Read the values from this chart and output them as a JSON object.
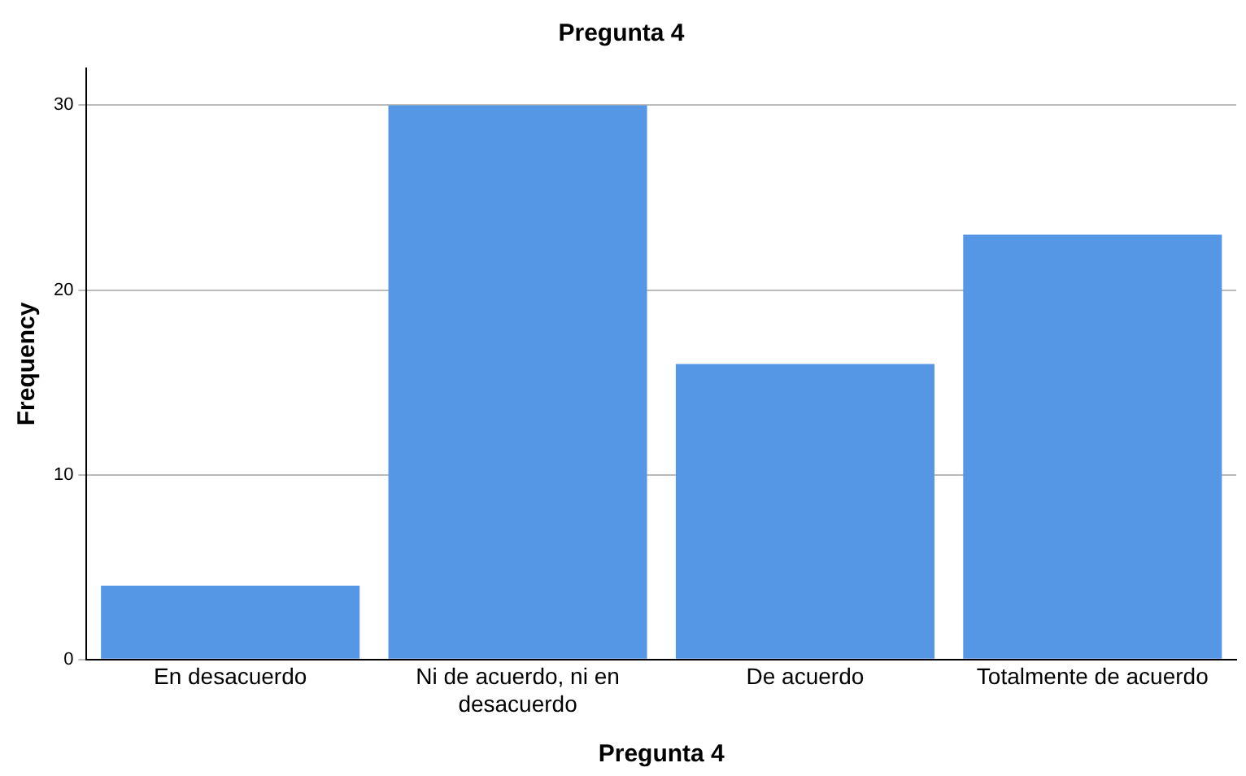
{
  "chart_data": {
    "type": "bar",
    "title": "Pregunta 4",
    "xlabel": "Pregunta 4",
    "ylabel": "Frequency",
    "categories": [
      "En desacuerdo",
      "Ni de acuerdo, ni en desacuerdo",
      "De acuerdo",
      "Totalmente de acuerdo"
    ],
    "values": [
      4,
      30,
      16,
      23
    ],
    "color": "#5596e5",
    "ylim": [
      0,
      32
    ],
    "yticks": [
      0,
      10,
      20,
      30
    ],
    "grid": "y",
    "legend": false
  }
}
